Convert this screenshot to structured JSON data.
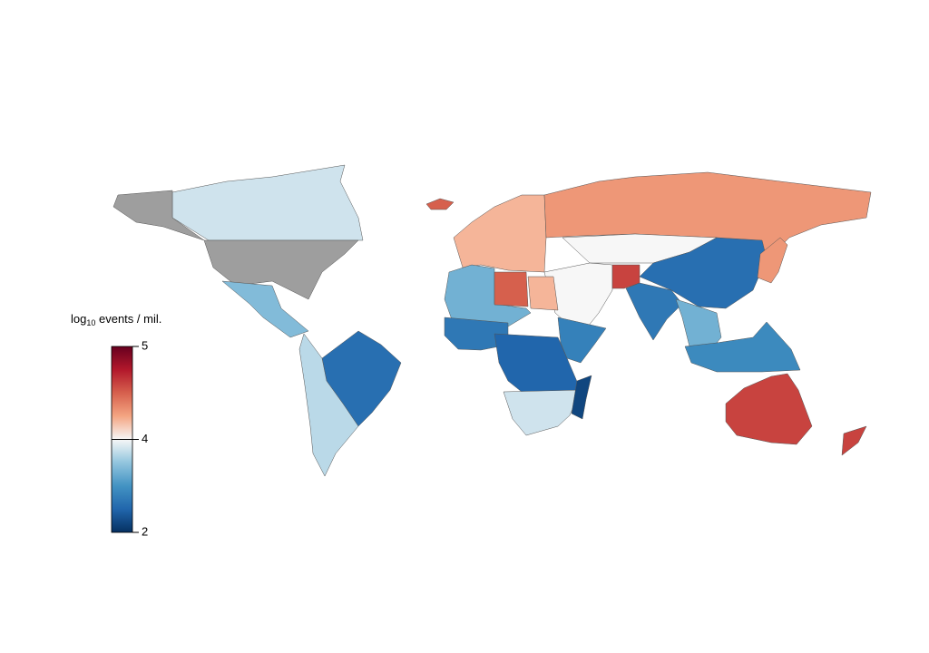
{
  "chart_data": {
    "type": "choropleth",
    "legend_title": {
      "prefix": "log",
      "subscript": "10",
      "suffix": " events / mil."
    },
    "ylim": [
      2,
      5
    ],
    "yticks": [
      2,
      4,
      5
    ],
    "colors": [
      "#053061",
      "#2166ac",
      "#4393c3",
      "#92c5de",
      "#f7f7f7",
      "#f4a582",
      "#d6604d",
      "#b2182b",
      "#67001f"
    ],
    "missing_color": "#9e9e9e",
    "values": [
      3.8,
      null,
      null,
      3.4,
      2.6,
      3.7,
      4.5,
      4.2,
      4.3,
      4.0,
      2.6,
      4.0,
      4.6,
      2.7,
      3.3,
      2.9,
      4.6,
      4.6,
      3.3,
      4.5,
      4.2,
      2.7,
      2.5,
      2.8,
      3.8,
      2.2,
      4.3
    ]
  }
}
